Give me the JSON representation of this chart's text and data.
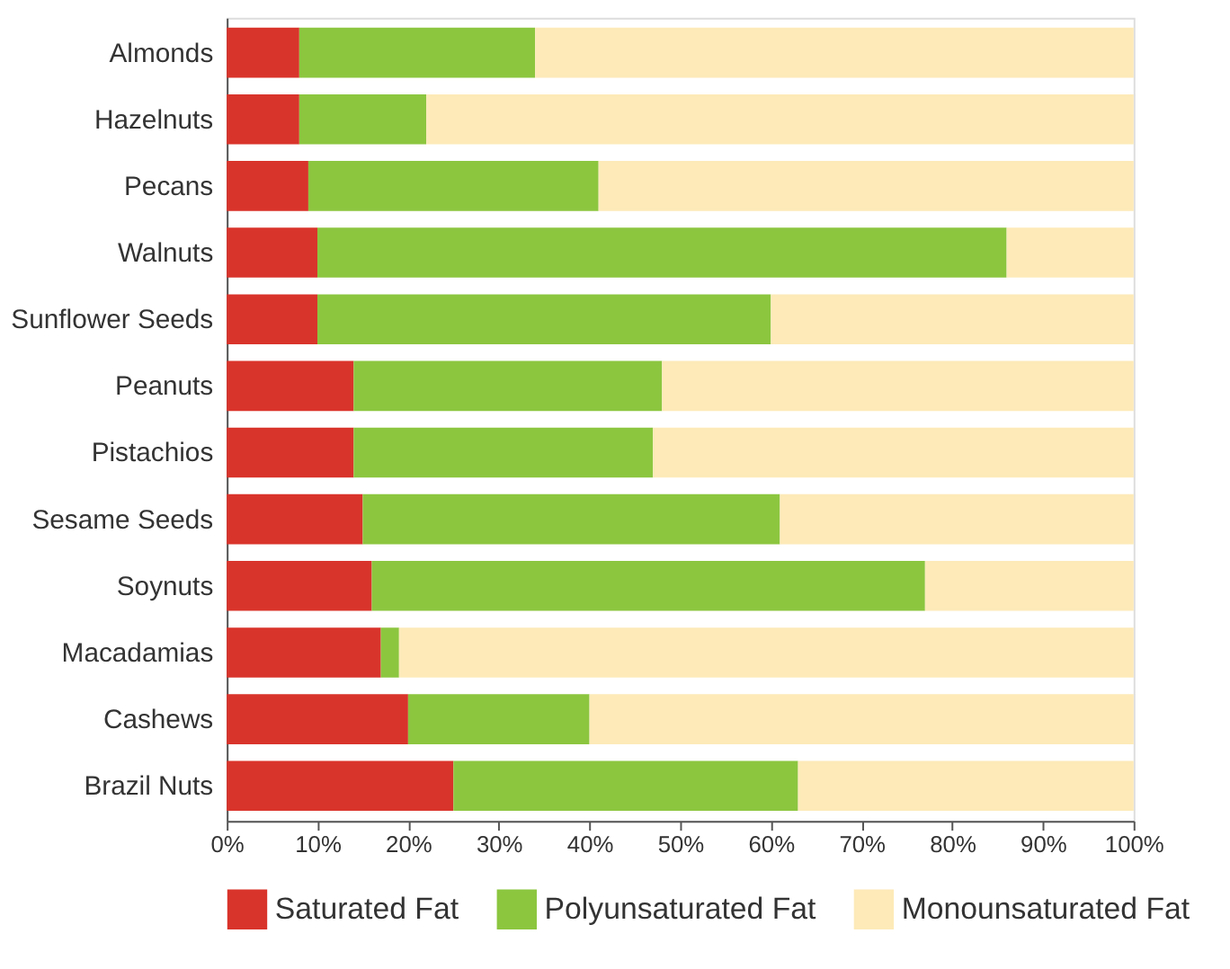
{
  "chart_data": {
    "type": "bar",
    "orientation": "horizontal",
    "stacked": true,
    "categories": [
      "Almonds",
      "Hazelnuts",
      "Pecans",
      "Walnuts",
      "Sunflower Seeds",
      "Peanuts",
      "Pistachios",
      "Sesame Seeds",
      "Soynuts",
      "Macadamias",
      "Cashews",
      "Brazil Nuts"
    ],
    "series": [
      {
        "name": "Saturated Fat",
        "color": "#d9342b",
        "values": [
          8,
          8,
          9,
          10,
          10,
          14,
          14,
          15,
          16,
          17,
          20,
          25
        ]
      },
      {
        "name": "Polyunsaturated Fat",
        "color": "#8cc63f",
        "values": [
          26,
          14,
          32,
          76,
          50,
          34,
          33,
          46,
          61,
          2,
          20,
          38
        ]
      },
      {
        "name": "Monounsaturated Fat",
        "color": "#fdeab8",
        "values": [
          66,
          78,
          59,
          14,
          40,
          52,
          53,
          39,
          23,
          81,
          60,
          37
        ]
      }
    ],
    "xlim": [
      0,
      100
    ],
    "xticks": [
      {
        "value": 0,
        "label": "0%"
      },
      {
        "value": 10,
        "label": "10%"
      },
      {
        "value": 20,
        "label": "20%"
      },
      {
        "value": 30,
        "label": "30%"
      },
      {
        "value": 40,
        "label": "40%"
      },
      {
        "value": 50,
        "label": "50%"
      },
      {
        "value": 60,
        "label": "60%"
      },
      {
        "value": 70,
        "label": "70%"
      },
      {
        "value": 80,
        "label": "80%"
      },
      {
        "value": 90,
        "label": "90%"
      },
      {
        "value": 100,
        "label": "100%"
      }
    ],
    "grid": false,
    "legend": "bottom"
  }
}
